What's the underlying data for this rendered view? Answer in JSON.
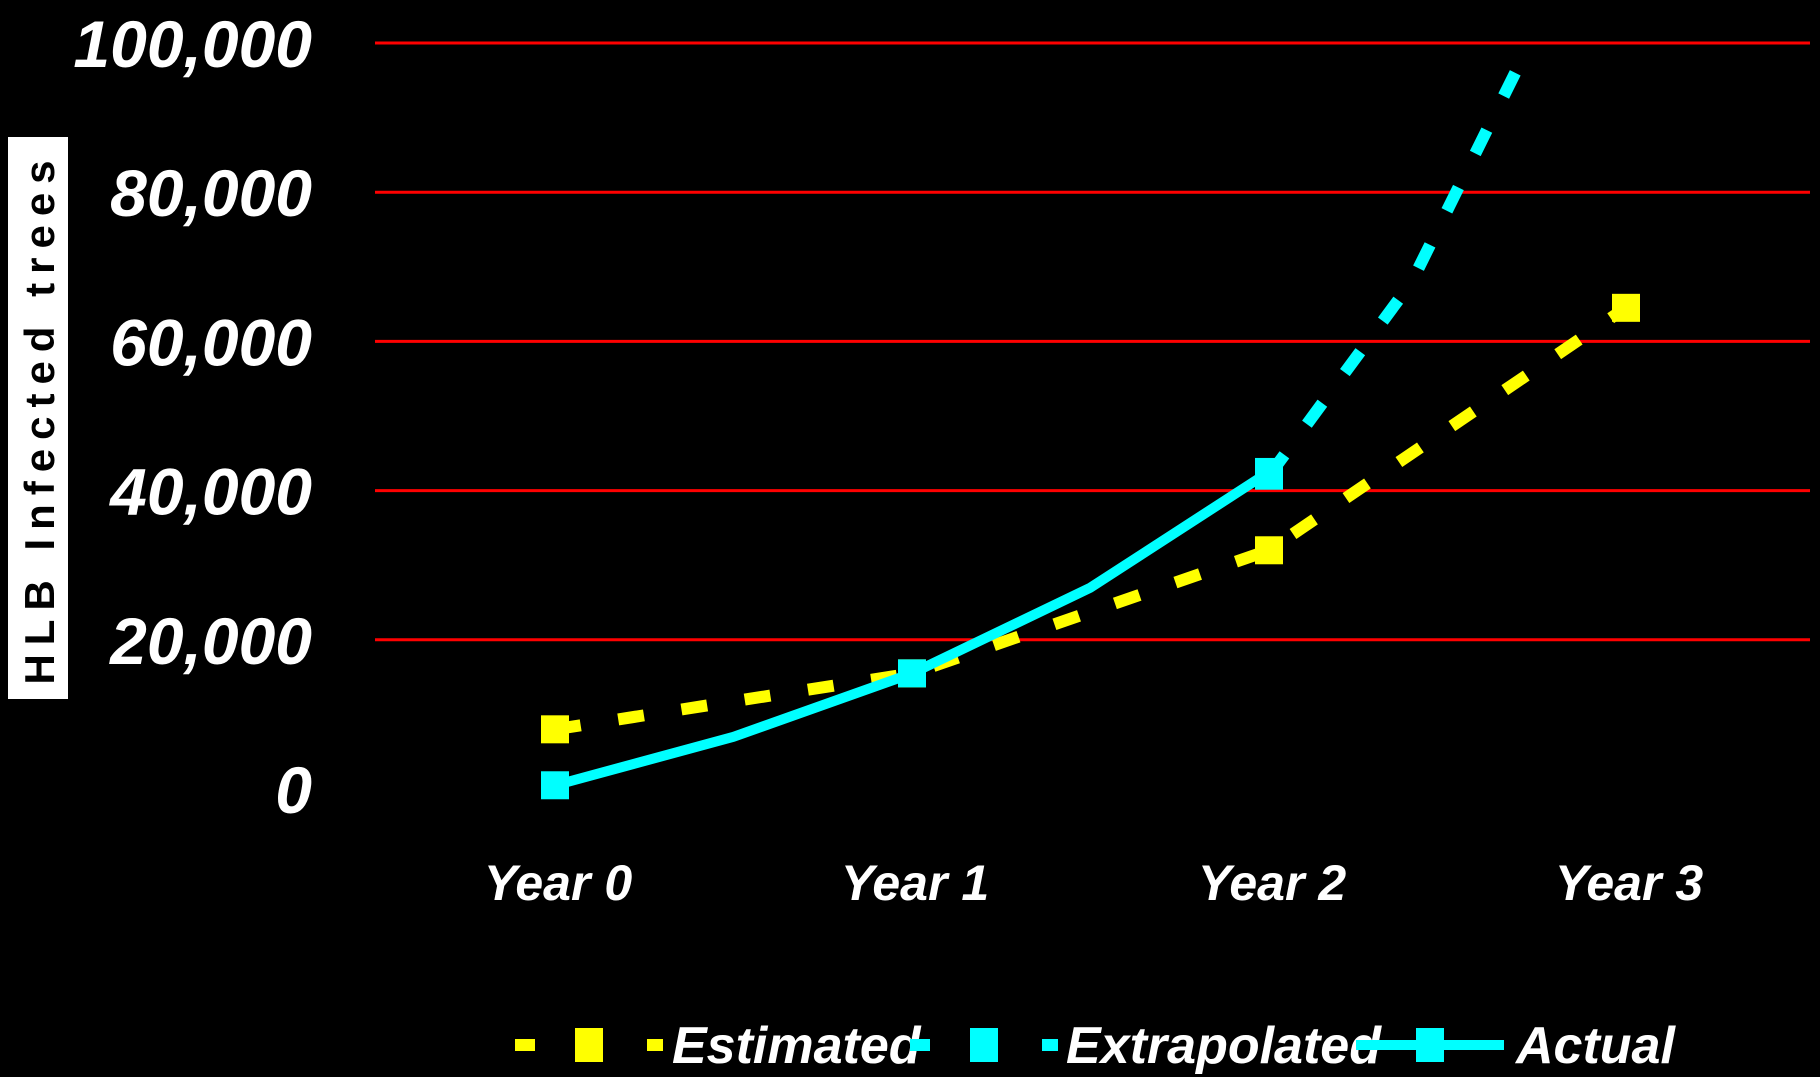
{
  "chart_data": {
    "type": "line",
    "ylabel": "HLB Infected trees",
    "xlabel": "",
    "title": "",
    "categories": [
      "Year 0",
      "Year 1",
      "Year 2",
      "Year 3"
    ],
    "y_ticks": [
      "0",
      "20,000",
      "40,000",
      "60,000",
      "80,000",
      "100,000"
    ],
    "ylim": [
      0,
      100000
    ],
    "grid": true,
    "legend_position": "bottom",
    "series": [
      {
        "name": "Estimated",
        "x": [
          0,
          1,
          2,
          3
        ],
        "values": [
          8000,
          15500,
          32000,
          64500
        ],
        "color": "#ffff00",
        "style": "dashed",
        "marker": "square"
      },
      {
        "name": "Extrapolated",
        "x": [
          2,
          2.4,
          2.7
        ],
        "values": [
          42000,
          68000,
          97000
        ],
        "color": "#00ffff",
        "style": "dashed",
        "marker": "square"
      },
      {
        "name": "Actual",
        "x": [
          0,
          0.5,
          1,
          1.5,
          2
        ],
        "values": [
          500,
          7000,
          15500,
          27000,
          42500
        ],
        "color": "#00ffff",
        "style": "solid",
        "marker": "square"
      }
    ],
    "colors": {
      "background": "#000000",
      "grid": "#ff0000",
      "text": "#ffffff"
    }
  }
}
